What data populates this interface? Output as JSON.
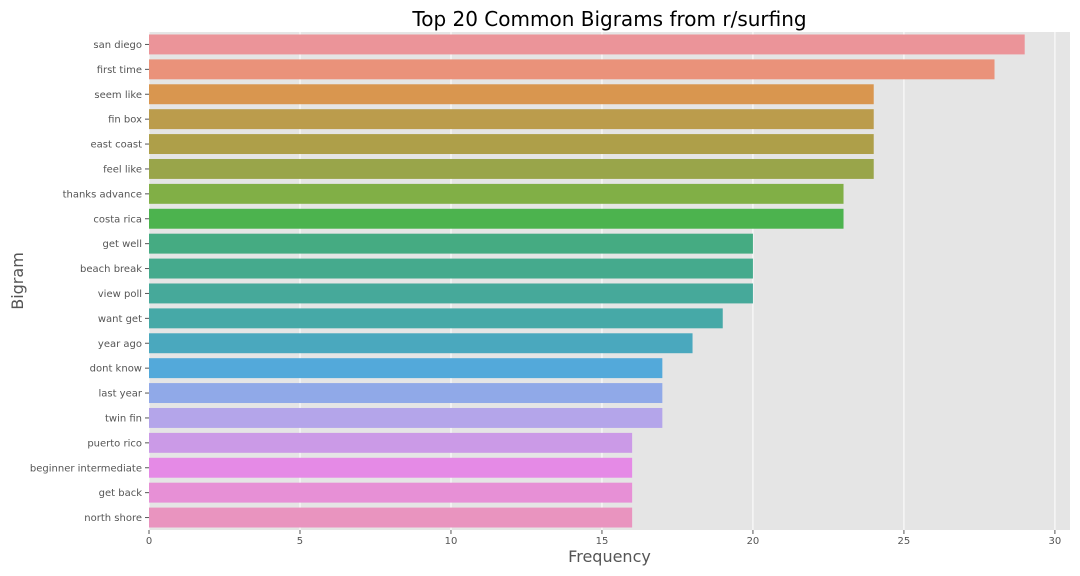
{
  "chart_data": {
    "type": "bar",
    "orientation": "horizontal",
    "title": "Top 20 Common Bigrams from r/surfing",
    "xlabel": "Frequency",
    "ylabel": "Bigram",
    "xlim": [
      0,
      30.5
    ],
    "xticks": [
      0,
      5,
      10,
      15,
      20,
      25,
      30
    ],
    "grid": true,
    "background": "#E5E5E5",
    "categories": [
      "san diego",
      "first time",
      "seem like",
      "fin box",
      "east coast",
      "feel like",
      "thanks advance",
      "costa rica",
      "get well",
      "beach break",
      "view poll",
      "want get",
      "year ago",
      "dont know",
      "last year",
      "twin fin",
      "puerto rico",
      "beginner intermediate",
      "get back",
      "north shore"
    ],
    "values": [
      29,
      28,
      24,
      24,
      24,
      24,
      23,
      23,
      20,
      20,
      20,
      19,
      18,
      17,
      17,
      17,
      16,
      16,
      16,
      16
    ],
    "colors": [
      "#EB9499",
      "#EA927A",
      "#D9964F",
      "#BB9C4C",
      "#AE9F49",
      "#99A54A",
      "#81AF46",
      "#4CB34E",
      "#45AB82",
      "#45AA8D",
      "#46A99A",
      "#46A9A7",
      "#4AA8BE",
      "#53A9DA",
      "#90A9E8",
      "#B4A5EA",
      "#CB9AE7",
      "#E58AE6",
      "#E790D6",
      "#E994BF"
    ]
  }
}
